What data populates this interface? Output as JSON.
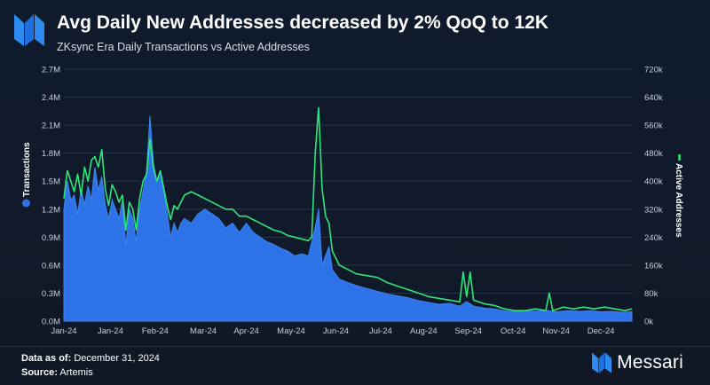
{
  "header": {
    "title": "Avg Daily New Addresses decreased by 2% QoQ to 12K",
    "subtitle": "ZKsync Era Daily Transactions vs Active Addresses"
  },
  "footer": {
    "data_as_of_label": "Data as of:",
    "data_as_of_value": "December 31, 2024",
    "source_label": "Source:",
    "source_value": "Artemis",
    "brand": "Messari"
  },
  "colors": {
    "transactions": "#2d72e6",
    "active_addresses": "#2ee57a",
    "background": "#0f1b2c"
  },
  "chart_data": {
    "type": "area",
    "title": "ZKsync Era Daily Transactions vs Active Addresses",
    "x_tick_labels": [
      "Jan-24",
      "Jan-24",
      "Feb-24",
      "Mar-24",
      "Apr-24",
      "May-24",
      "Jun-24",
      "Jul-24",
      "Aug-24",
      "Sep-24",
      "Oct-24",
      "Nov-24",
      "Dec-24"
    ],
    "x_tick_days": [
      0,
      27,
      53,
      81,
      106,
      132,
      158,
      184,
      209,
      235,
      261,
      286,
      312
    ],
    "x_range_days": [
      0,
      330
    ],
    "left_axis": {
      "label": "Transactions",
      "ticks": [
        "0.0M",
        "0.3M",
        "0.6M",
        "0.9M",
        "1.2M",
        "1.5M",
        "1.8M",
        "2.1M",
        "2.4M",
        "2.7M"
      ],
      "ylim": [
        0,
        2700000
      ]
    },
    "right_axis": {
      "label": "Active Addresses",
      "ticks": [
        "0k",
        "80k",
        "160k",
        "240k",
        "320k",
        "400k",
        "480k",
        "560k",
        "640k",
        "720k"
      ],
      "ylim": [
        0,
        720000
      ]
    },
    "series": [
      {
        "name": "Transactions",
        "axis": "left",
        "style": "area",
        "points": [
          [
            0,
            1200000
          ],
          [
            2,
            1500000
          ],
          [
            4,
            1300000
          ],
          [
            6,
            1350000
          ],
          [
            8,
            1150000
          ],
          [
            10,
            1400000
          ],
          [
            12,
            1250000
          ],
          [
            14,
            1450000
          ],
          [
            16,
            1300000
          ],
          [
            18,
            1650000
          ],
          [
            20,
            1400000
          ],
          [
            22,
            1550000
          ],
          [
            24,
            1250000
          ],
          [
            26,
            1100000
          ],
          [
            28,
            1300000
          ],
          [
            30,
            1200000
          ],
          [
            32,
            1100000
          ],
          [
            34,
            1300000
          ],
          [
            36,
            800000
          ],
          [
            38,
            1200000
          ],
          [
            40,
            1100000
          ],
          [
            42,
            850000
          ],
          [
            44,
            1200000
          ],
          [
            46,
            1400000
          ],
          [
            48,
            1600000
          ],
          [
            50,
            2200000
          ],
          [
            52,
            1700000
          ],
          [
            54,
            1500000
          ],
          [
            56,
            1600000
          ],
          [
            58,
            1400000
          ],
          [
            60,
            1150000
          ],
          [
            62,
            900000
          ],
          [
            64,
            1050000
          ],
          [
            66,
            950000
          ],
          [
            68,
            1050000
          ],
          [
            70,
            1100000
          ],
          [
            74,
            1050000
          ],
          [
            78,
            1150000
          ],
          [
            82,
            1200000
          ],
          [
            86,
            1150000
          ],
          [
            90,
            1100000
          ],
          [
            94,
            1000000
          ],
          [
            98,
            1050000
          ],
          [
            102,
            950000
          ],
          [
            106,
            1050000
          ],
          [
            110,
            950000
          ],
          [
            114,
            900000
          ],
          [
            118,
            850000
          ],
          [
            122,
            820000
          ],
          [
            126,
            780000
          ],
          [
            130,
            750000
          ],
          [
            134,
            700000
          ],
          [
            138,
            720000
          ],
          [
            142,
            700000
          ],
          [
            146,
            1000000
          ],
          [
            148,
            1200000
          ],
          [
            150,
            600000
          ],
          [
            154,
            800000
          ],
          [
            156,
            550000
          ],
          [
            160,
            450000
          ],
          [
            164,
            420000
          ],
          [
            170,
            380000
          ],
          [
            176,
            350000
          ],
          [
            182,
            320000
          ],
          [
            188,
            290000
          ],
          [
            194,
            270000
          ],
          [
            200,
            250000
          ],
          [
            206,
            220000
          ],
          [
            212,
            200000
          ],
          [
            218,
            180000
          ],
          [
            224,
            190000
          ],
          [
            230,
            160000
          ],
          [
            234,
            210000
          ],
          [
            238,
            160000
          ],
          [
            244,
            140000
          ],
          [
            250,
            130000
          ],
          [
            256,
            110000
          ],
          [
            262,
            100000
          ],
          [
            268,
            110000
          ],
          [
            274,
            105000
          ],
          [
            280,
            115000
          ],
          [
            286,
            100000
          ],
          [
            292,
            110000
          ],
          [
            300,
            105000
          ],
          [
            306,
            110000
          ],
          [
            312,
            100000
          ],
          [
            318,
            105000
          ],
          [
            324,
            95000
          ],
          [
            330,
            100000
          ]
        ]
      },
      {
        "name": "Active Addresses",
        "axis": "right",
        "style": "line",
        "points": [
          [
            0,
            350000
          ],
          [
            2,
            430000
          ],
          [
            4,
            400000
          ],
          [
            6,
            370000
          ],
          [
            8,
            420000
          ],
          [
            10,
            360000
          ],
          [
            12,
            440000
          ],
          [
            14,
            400000
          ],
          [
            16,
            460000
          ],
          [
            18,
            470000
          ],
          [
            20,
            440000
          ],
          [
            22,
            490000
          ],
          [
            24,
            380000
          ],
          [
            26,
            330000
          ],
          [
            28,
            390000
          ],
          [
            30,
            370000
          ],
          [
            32,
            340000
          ],
          [
            34,
            360000
          ],
          [
            36,
            260000
          ],
          [
            38,
            340000
          ],
          [
            40,
            320000
          ],
          [
            42,
            260000
          ],
          [
            44,
            350000
          ],
          [
            46,
            400000
          ],
          [
            48,
            420000
          ],
          [
            50,
            520000
          ],
          [
            52,
            440000
          ],
          [
            54,
            400000
          ],
          [
            56,
            430000
          ],
          [
            58,
            380000
          ],
          [
            60,
            330000
          ],
          [
            62,
            290000
          ],
          [
            64,
            330000
          ],
          [
            66,
            320000
          ],
          [
            68,
            340000
          ],
          [
            70,
            360000
          ],
          [
            74,
            370000
          ],
          [
            78,
            360000
          ],
          [
            82,
            350000
          ],
          [
            86,
            340000
          ],
          [
            90,
            330000
          ],
          [
            94,
            320000
          ],
          [
            98,
            320000
          ],
          [
            102,
            300000
          ],
          [
            106,
            300000
          ],
          [
            110,
            290000
          ],
          [
            114,
            280000
          ],
          [
            118,
            270000
          ],
          [
            122,
            260000
          ],
          [
            126,
            255000
          ],
          [
            130,
            245000
          ],
          [
            134,
            240000
          ],
          [
            138,
            235000
          ],
          [
            142,
            230000
          ],
          [
            144,
            240000
          ],
          [
            146,
            480000
          ],
          [
            148,
            610000
          ],
          [
            150,
            380000
          ],
          [
            152,
            300000
          ],
          [
            154,
            280000
          ],
          [
            156,
            200000
          ],
          [
            160,
            160000
          ],
          [
            164,
            150000
          ],
          [
            170,
            135000
          ],
          [
            176,
            130000
          ],
          [
            182,
            125000
          ],
          [
            188,
            110000
          ],
          [
            194,
            100000
          ],
          [
            200,
            90000
          ],
          [
            206,
            80000
          ],
          [
            212,
            70000
          ],
          [
            218,
            65000
          ],
          [
            224,
            60000
          ],
          [
            230,
            55000
          ],
          [
            232,
            140000
          ],
          [
            234,
            70000
          ],
          [
            236,
            140000
          ],
          [
            238,
            60000
          ],
          [
            244,
            50000
          ],
          [
            250,
            45000
          ],
          [
            256,
            35000
          ],
          [
            262,
            30000
          ],
          [
            268,
            30000
          ],
          [
            274,
            35000
          ],
          [
            280,
            30000
          ],
          [
            282,
            80000
          ],
          [
            284,
            30000
          ],
          [
            290,
            40000
          ],
          [
            296,
            35000
          ],
          [
            302,
            40000
          ],
          [
            308,
            35000
          ],
          [
            314,
            40000
          ],
          [
            320,
            35000
          ],
          [
            326,
            30000
          ],
          [
            330,
            35000
          ]
        ]
      }
    ]
  }
}
